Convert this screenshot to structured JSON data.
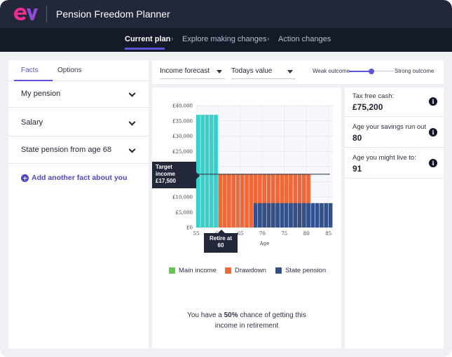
{
  "app": {
    "title": "Pension Freedom Planner"
  },
  "steps": [
    {
      "label": "Current plan"
    },
    {
      "label": "Explore making changes"
    },
    {
      "label": "Action changes"
    }
  ],
  "left_panel": {
    "tabs": [
      {
        "label": "Facts"
      },
      {
        "label": "Options"
      }
    ],
    "facts": [
      {
        "label": "My pension"
      },
      {
        "label": "Salary"
      },
      {
        "label": "State pension from age 68"
      }
    ],
    "add_fact_label": "Add another fact about you"
  },
  "controls": {
    "forecast_select": "Income forecast",
    "value_select": "Todays value",
    "weak_outcome": "Weak outcome",
    "strong_outcome": "Strong outcome",
    "outcome_level": 0.48
  },
  "chart_data": {
    "type": "bar",
    "xlabel": "Age",
    "x_ticks": [
      55,
      60,
      65,
      70,
      75,
      80,
      85
    ],
    "y_ticks": [
      "£0",
      "£5,000",
      "£10,000",
      "£15,000",
      "£20,000",
      "£25,000",
      "£30,000",
      "£35,000",
      "£40,000"
    ],
    "ylim": [
      0,
      40000
    ],
    "xlim": [
      55,
      86
    ],
    "series": [
      {
        "name": "Main income",
        "color": "#62c94d",
        "values": [
          [
            55,
            37000
          ],
          [
            56,
            37000
          ],
          [
            57,
            37000
          ],
          [
            58,
            37000
          ],
          [
            59,
            37000
          ]
        ],
        "drawn_color": "#37d1cb"
      },
      {
        "name": "Drawdown",
        "color": "#f06837",
        "values": [
          [
            60,
            17500
          ],
          [
            61,
            17500
          ],
          [
            62,
            17500
          ],
          [
            63,
            17500
          ],
          [
            64,
            17500
          ],
          [
            65,
            17500
          ],
          [
            66,
            17500
          ],
          [
            67,
            17500
          ],
          [
            68,
            17500
          ],
          [
            69,
            17500
          ],
          [
            70,
            17500
          ],
          [
            71,
            17500
          ],
          [
            72,
            17500
          ],
          [
            73,
            17500
          ],
          [
            74,
            17500
          ],
          [
            75,
            17500
          ],
          [
            76,
            17500
          ],
          [
            77,
            17500
          ],
          [
            78,
            17500
          ],
          [
            79,
            17500
          ],
          [
            80,
            17500
          ]
        ]
      },
      {
        "name": "State pension",
        "color": "#30518b",
        "values": [
          [
            68,
            8000
          ],
          [
            69,
            8000
          ],
          [
            70,
            8000
          ],
          [
            71,
            8000
          ],
          [
            72,
            8000
          ],
          [
            73,
            8000
          ],
          [
            74,
            8000
          ],
          [
            75,
            8000
          ],
          [
            76,
            8000
          ],
          [
            77,
            8000
          ],
          [
            78,
            8000
          ],
          [
            79,
            8000
          ],
          [
            80,
            8000
          ],
          [
            81,
            8000
          ],
          [
            82,
            8000
          ],
          [
            83,
            8000
          ],
          [
            84,
            8000
          ],
          [
            85,
            8000
          ]
        ]
      }
    ],
    "target_line": 17500,
    "legend": [
      {
        "label": "Main income",
        "color": "#62c94d"
      },
      {
        "label": "Drawdown",
        "color": "#f06837"
      },
      {
        "label": "State pension",
        "color": "#30518b"
      }
    ]
  },
  "callouts": {
    "target_line_1": "Target",
    "target_line_2": "income",
    "target_value": "£17,500",
    "retire_line_1": "Retire at",
    "retire_line_2": "60"
  },
  "chance": {
    "prefix": "You have a ",
    "percent": "50%",
    "suffix": " chance of getting this",
    "line2": "income in retirement"
  },
  "metrics": [
    {
      "label": "Tax free cash:",
      "value": "£75,200"
    },
    {
      "label": "Age your savings run out",
      "value": "80"
    },
    {
      "label": "Age you might live to:",
      "value": "91"
    }
  ]
}
